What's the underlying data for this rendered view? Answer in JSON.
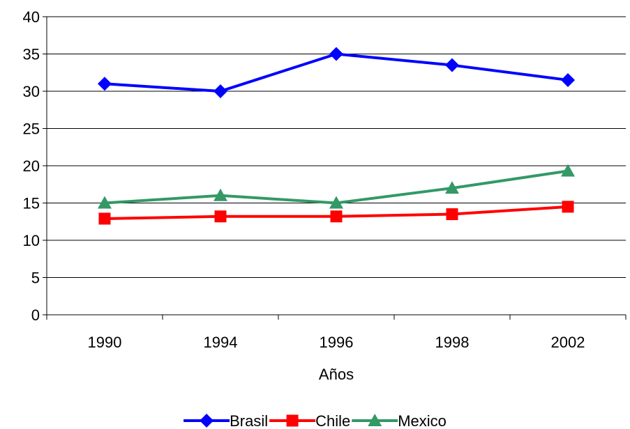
{
  "chart_data": {
    "type": "line",
    "categories": [
      "1990",
      "1994",
      "1996",
      "1998",
      "2002"
    ],
    "series": [
      {
        "name": "Brasil",
        "values": [
          31,
          30,
          35,
          33.5,
          31.5
        ],
        "color": "#0000ff",
        "marker": "diamond"
      },
      {
        "name": "Chile",
        "values": [
          12.9,
          13.2,
          13.2,
          13.5,
          14.5
        ],
        "color": "#ff0000",
        "marker": "square"
      },
      {
        "name": "Mexico",
        "values": [
          15,
          16,
          15,
          17,
          19.3
        ],
        "color": "#339966",
        "marker": "triangle"
      }
    ],
    "xlabel": "Años",
    "ylabel": "",
    "ylim": [
      0,
      40
    ],
    "yticks": [
      "0",
      "5",
      "10",
      "15",
      "20",
      "25",
      "30",
      "35",
      "40"
    ],
    "grid": "horizontal",
    "legend": "bottom"
  }
}
